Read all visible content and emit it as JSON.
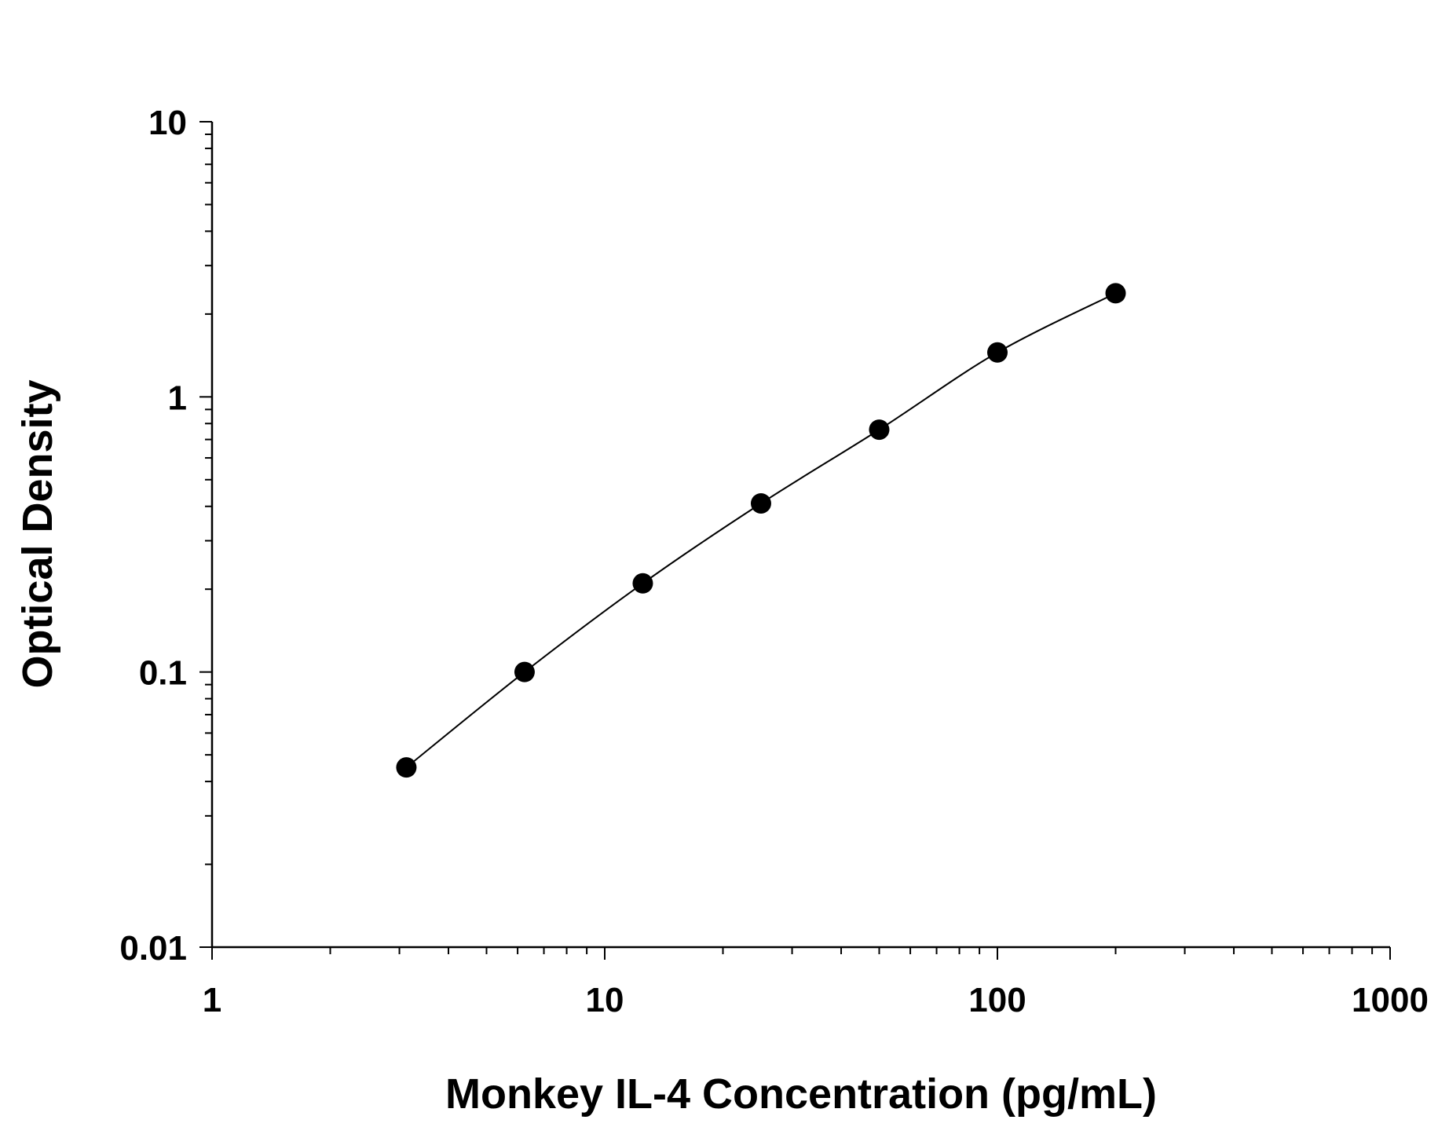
{
  "chart_data": {
    "type": "scatter",
    "title": "",
    "xlabel": "Monkey IL-4 Concentration (pg/mL)",
    "ylabel": "Optical Density",
    "x_scale": "log",
    "y_scale": "log",
    "xlim": [
      1,
      1000
    ],
    "ylim": [
      0.01,
      10
    ],
    "x_ticks": [
      "1",
      "10",
      "100",
      "1000"
    ],
    "y_ticks": [
      "0.01",
      "0.1",
      "1",
      "10"
    ],
    "grid": false,
    "legend": "none",
    "series": [
      {
        "x": [
          3.125,
          6.25,
          12.5,
          25,
          50,
          100,
          200
        ],
        "y": [
          0.045,
          0.1,
          0.21,
          0.41,
          0.76,
          1.45,
          2.38
        ]
      }
    ],
    "fit_curve": true,
    "colors": {
      "points": "#000000",
      "curve": "#000000",
      "axes": "#000000"
    }
  }
}
